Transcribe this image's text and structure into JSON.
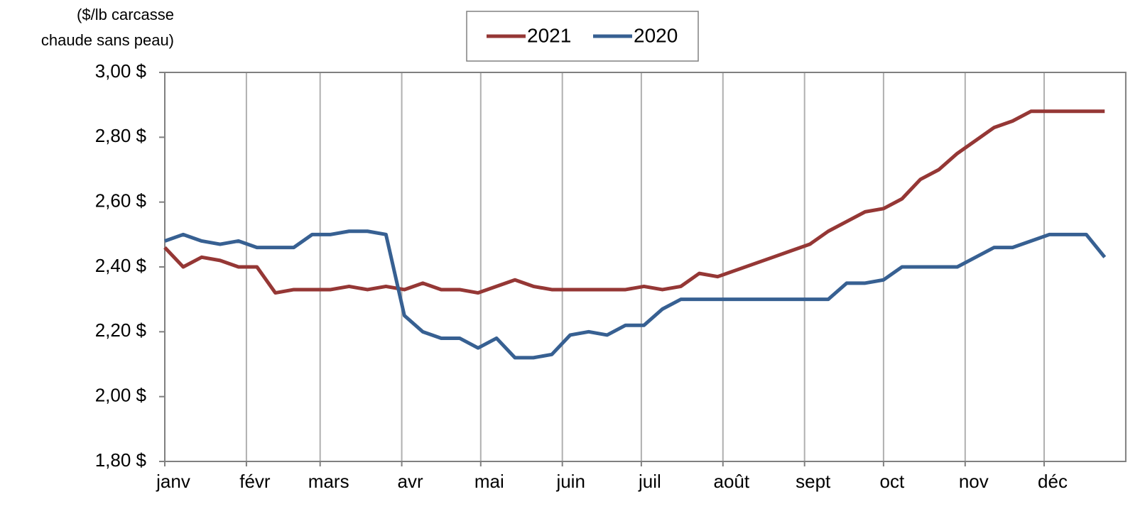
{
  "chart_data": {
    "type": "line",
    "y_label": [
      "($/lb carcasse",
      "chaude sans peau)"
    ],
    "x": [
      0,
      7,
      14,
      21,
      28,
      35,
      42,
      49,
      56,
      63,
      70,
      77,
      84,
      91,
      98,
      105,
      112,
      119,
      126,
      133,
      140,
      147,
      154,
      161,
      168,
      175,
      182,
      189,
      196,
      203,
      210,
      217,
      224,
      231,
      238,
      245,
      252,
      259,
      266,
      273,
      280,
      287,
      294,
      301,
      308,
      315,
      322,
      329,
      336,
      343,
      350,
      357
    ],
    "xlim": [
      0,
      365
    ],
    "xticks": [
      {
        "value": 0,
        "label": "janv"
      },
      {
        "value": 31,
        "label": "févr"
      },
      {
        "value": 59,
        "label": "mars"
      },
      {
        "value": 90,
        "label": "avr"
      },
      {
        "value": 120,
        "label": "mai"
      },
      {
        "value": 151,
        "label": "juin"
      },
      {
        "value": 181,
        "label": "juil"
      },
      {
        "value": 212,
        "label": "août"
      },
      {
        "value": 243,
        "label": "sept"
      },
      {
        "value": 273,
        "label": "oct"
      },
      {
        "value": 304,
        "label": "nov"
      },
      {
        "value": 334,
        "label": "déc"
      }
    ],
    "ylim": [
      1.8,
      3.0
    ],
    "yticks": [
      {
        "value": 1.8,
        "label": "1,80 $"
      },
      {
        "value": 2.0,
        "label": "2,00 $"
      },
      {
        "value": 2.2,
        "label": "2,20 $"
      },
      {
        "value": 2.4,
        "label": "2,40 $"
      },
      {
        "value": 2.6,
        "label": "2,60 $"
      },
      {
        "value": 2.8,
        "label": "2,80 $"
      },
      {
        "value": 3.0,
        "label": "3,00 $"
      }
    ],
    "grid": "x",
    "legend": "top",
    "series": [
      {
        "name": "2021",
        "color": "#953735",
        "values": [
          2.46,
          2.4,
          2.43,
          2.42,
          2.4,
          2.4,
          2.32,
          2.33,
          2.33,
          2.33,
          2.34,
          2.33,
          2.34,
          2.33,
          2.35,
          2.33,
          2.33,
          2.32,
          2.34,
          2.36,
          2.34,
          2.33,
          2.33,
          2.33,
          2.33,
          2.33,
          2.34,
          2.33,
          2.34,
          2.38,
          2.37,
          2.39,
          2.41,
          2.43,
          2.45,
          2.47,
          2.51,
          2.54,
          2.57,
          2.58,
          2.61,
          2.67,
          2.7,
          2.75,
          2.79,
          2.83,
          2.85,
          2.88,
          2.88,
          2.88,
          2.88,
          2.88
        ]
      },
      {
        "name": "2020",
        "color": "#376092",
        "values": [
          2.48,
          2.5,
          2.48,
          2.47,
          2.48,
          2.46,
          2.46,
          2.46,
          2.5,
          2.5,
          2.51,
          2.51,
          2.5,
          2.25,
          2.2,
          2.18,
          2.18,
          2.15,
          2.18,
          2.12,
          2.12,
          2.13,
          2.19,
          2.2,
          2.19,
          2.22,
          2.22,
          2.27,
          2.3,
          2.3,
          2.3,
          2.3,
          2.3,
          2.3,
          2.3,
          2.3,
          2.3,
          2.35,
          2.35,
          2.36,
          2.4,
          2.4,
          2.4,
          2.4,
          2.43,
          2.46,
          2.46,
          2.48,
          2.5,
          2.5,
          2.5,
          2.43
        ]
      }
    ]
  }
}
